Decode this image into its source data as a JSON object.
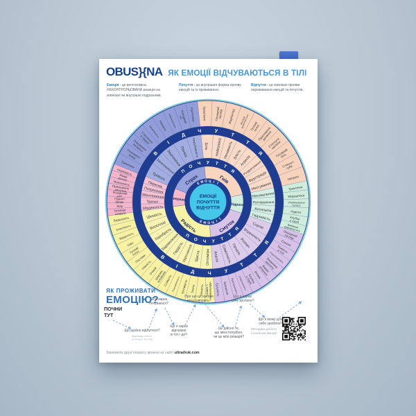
{
  "header": {
    "brand": "OBUS}{NA",
    "title": "ЯК ЕМОЦІЇ ВІДЧУВАЮТЬСЯ В ТІЛІ"
  },
  "definitions": [
    {
      "term": "Емоція",
      "text": "- це вегетативна НЕКОНТРОЛЬОВАНА реакція на зовнішні чи внутрішні подразники."
    },
    {
      "term": "Почуття",
      "text": "- це внутрішня форма прояву емоцій та їх проживання."
    },
    {
      "term": "Відчуття",
      "text": "- це зовнішні прояви переживання емоцій та почуттів."
    }
  ],
  "wheel": {
    "center_lines": [
      "ЕМОЦІЇ",
      "ПОЧУТТЯ",
      "ВІДЧУТТЯ"
    ],
    "ring_labels": {
      "inner": "ЕМОЦІЇ",
      "middle": "ПОЧУТТЯ",
      "outer": "ВІДЧУТТЯ"
    },
    "ink_color": "#1e3c90",
    "center_color": "#44c7e8",
    "center_text_color": "#123a85",
    "sectors": [
      {
        "emotion": "Гнів",
        "color": "#f7d3bc",
        "start": 354,
        "span": 84,
        "feelings": [
          "Біль",
          "Небезпека",
          "Ненависть",
          "Злість",
          "Агресія",
          "Роздратування",
          "Фрустрація",
          "Нехтування"
        ],
        "sensations": [
          "Тремтіння",
          "Похмурий погляд",
          "Жар/холод",
          "Високий кров'яний тиск",
          "Гучний голос",
          "Прискорене дихання",
          "Стиснута щелепа",
          "Головний біль",
          "Стиснуті губи",
          "Напруга"
        ]
      },
      {
        "emotion": "Відраза",
        "color": "#cfecdc",
        "start": 78,
        "span": 31,
        "feelings": [
          "Несхвалення",
          "Розчарування",
          "Антипатія",
          "Гидливість"
        ],
        "sensations": [
          "Тремтіння",
          "Морщитися",
          "Уповільнення пульсу",
          "Нудота",
          "Клубок у горлі",
          "Бажання відвернутися"
        ]
      },
      {
        "emotion": "Смуток",
        "color": "#d7c1e6",
        "start": 109,
        "span": 67,
        "feelings": [
          "Сором",
          "Втраченість",
          "Розпач",
          "Печаль",
          "Самотність",
          "Апатія"
        ],
        "sensations": [
          "Опущений погляд",
          "Сльози",
          "Тяжкість в тілі",
          "Спустошеність",
          "Зниження апетиту",
          "Важке зітхання",
          "Втома",
          "Клубок у горлі",
          "Уповільненість",
          "Приглушеність",
          "Безсилля",
          "Сутулість"
        ]
      },
      {
        "emotion": "Радість",
        "color": "#f8f1a2",
        "start": 176,
        "span": 86,
        "feelings": [
          "Оптимізм",
          "Щастя",
          "Натхнення",
          "Гордість",
          "Задоволення",
          "Хоробрість",
          "Веселощі",
          "Цікавість"
        ],
        "sensations": [
          "«Метелики» у животі",
          "Легкість",
          "Тепло",
          "Чутливість",
          "Розслабленість",
          "Стійкість",
          "Широка посмішка",
          "Спокій",
          "Ніжність",
          "Постава",
          "Гучний голос",
          "Сміх",
          "Відкритість",
          "Енергійність",
          "Бадьорість"
        ]
      },
      {
        "emotion": "Здивування",
        "color": "#f4b5ca",
        "start": 262,
        "span": 30,
        "feelings": [
          "Збудженість",
          "Трепет",
          "Збентеження",
          "Потрясіння",
          "Переляк"
        ],
        "sensations": [
          "М'язова напруга",
          "Жар",
          "Підняті брови",
          "Розкритий рот",
          "Прискорене дихання",
          "Мовчазність",
          "Мокрі долоні",
          "Нервовість"
        ]
      },
      {
        "emotion": "Страх",
        "color": "#939dd9",
        "start": 292,
        "span": 62,
        "feelings": [
          "Тривога",
          "Занепокоєння",
          "Заціпеніння",
          "Паніка",
          "Розгубленість"
        ],
        "sensations": [
          "Тремтіння",
          "Розширені зіниці",
          "Очікування поганого",
          "Стиснення в грудях",
          "Закам'янілість",
          "Напруга",
          "Забудькуватість",
          "Холодний піт",
          "Рум'янець"
        ]
      }
    ]
  },
  "how_to": {
    "kicker": "ЯК ПРОЖИВАТИ",
    "title": "ЕМОЦІЮ?",
    "start": "ПОЧНИ\nТУТ",
    "steps": [
      {
        "text": "Що щойно відбулося?",
        "note": "(відповідь стисло,\nне більше 10 слів)"
      },
      {
        "text": "Як я зараз\nпочуваюся?"
      },
      {
        "text": "Що я зараз\nвідчуваю\nв тілі і де?"
      },
      {
        "text": "Про що ця емоція\nмені говорить?"
      },
      {
        "text": "Це дійсно те,\nщо мені потрібно,\nчи це моя реакція?"
      },
      {
        "text": "Що я зараз\nхочу зробити?"
      },
      {
        "text": "Що я можу для\nсебе зробити?"
      }
    ]
  },
  "footer": {
    "order_text": "Замовити друк плакату можна на сайті",
    "site": "ultradruk.com",
    "qr_caption": "Методика роботи\nз колесом емоцій"
  }
}
